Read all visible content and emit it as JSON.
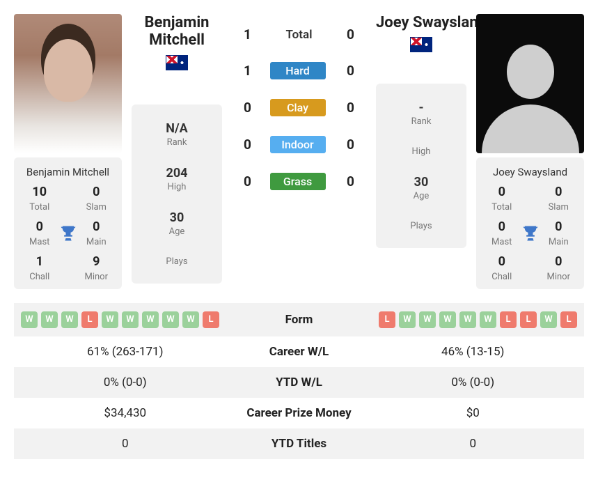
{
  "colors": {
    "hard": "#2f86c6",
    "clay": "#d79a1e",
    "indoor": "#56aef0",
    "grass": "#3f9a3f",
    "win": "#9bd19b",
    "loss": "#ef7b6d",
    "trophy": "#3f77c9"
  },
  "p1": {
    "name": "Benjamin Mitchell",
    "country": "AUS",
    "rank": "N/A",
    "high": "204",
    "age": "30",
    "plays": "",
    "titles": {
      "total": "10",
      "slam": "0",
      "mast": "0",
      "main": "0",
      "chall": "1",
      "minor": "9"
    },
    "form": [
      "W",
      "W",
      "W",
      "L",
      "W",
      "W",
      "W",
      "W",
      "W",
      "L"
    ],
    "career_wl": "61% (263-171)",
    "ytd_wl": "0% (0-0)",
    "prize": "$34,430",
    "ytd_titles": "0"
  },
  "p2": {
    "name": "Joey Swaysland",
    "country": "AUS",
    "rank": "-",
    "high": "",
    "age": "30",
    "plays": "",
    "titles": {
      "total": "0",
      "slam": "0",
      "mast": "0",
      "main": "0",
      "chall": "0",
      "minor": "0"
    },
    "form": [
      "L",
      "W",
      "W",
      "W",
      "W",
      "W",
      "L",
      "L",
      "W",
      "L"
    ],
    "career_wl": "46% (13-15)",
    "ytd_wl": "0% (0-0)",
    "prize": "$0",
    "ytd_titles": "0"
  },
  "h2h": {
    "total": {
      "label": "Total",
      "p1": "1",
      "p2": "0"
    },
    "hard": {
      "label": "Hard",
      "p1": "1",
      "p2": "0"
    },
    "clay": {
      "label": "Clay",
      "p1": "0",
      "p2": "0"
    },
    "indoor": {
      "label": "Indoor",
      "p1": "0",
      "p2": "0"
    },
    "grass": {
      "label": "Grass",
      "p1": "0",
      "p2": "0"
    }
  },
  "labels": {
    "rank": "Rank",
    "high": "High",
    "age": "Age",
    "plays": "Plays",
    "total": "Total",
    "slam": "Slam",
    "mast": "Mast",
    "main": "Main",
    "chall": "Chall",
    "minor": "Minor",
    "form": "Form",
    "career_wl": "Career W/L",
    "ytd_wl": "YTD W/L",
    "prize": "Career Prize Money",
    "ytd_titles": "YTD Titles"
  }
}
